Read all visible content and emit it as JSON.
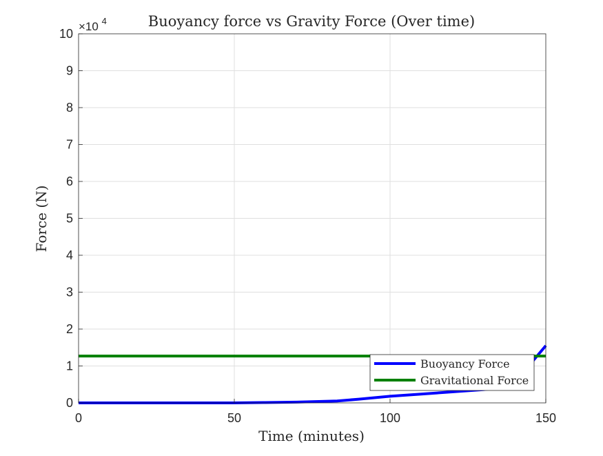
{
  "chart_data": {
    "type": "line",
    "title": "Buoyancy force vs Gravity Force (Over time)",
    "xlabel": "Time (minutes)",
    "ylabel": "Force (N)",
    "xlim": [
      0,
      150
    ],
    "ylim": [
      0,
      100000
    ],
    "x_ticks": [
      0,
      50,
      100,
      150
    ],
    "y_ticks": [
      0,
      10000,
      20000,
      30000,
      40000,
      50000,
      60000,
      70000,
      80000,
      90000,
      100000
    ],
    "x_tick_labels": [
      "0",
      "50",
      "100",
      "150"
    ],
    "y_tick_labels": [
      "0",
      "1",
      "2",
      "3",
      "4",
      "5",
      "6",
      "7",
      "8",
      "9",
      "10"
    ],
    "y_exponent_base": "×10",
    "y_exponent_power": "4",
    "grid": true,
    "legend_position": "bottom-right",
    "series": [
      {
        "name": "Buoyancy Force",
        "color": "#0000ff",
        "x": [
          0,
          10,
          20,
          30,
          40,
          50,
          60,
          70,
          83,
          90,
          100,
          110,
          120,
          130,
          140,
          145,
          150
        ],
        "y": [
          0,
          0,
          0,
          0,
          0,
          0,
          100,
          200,
          500,
          1000,
          1800,
          2400,
          3000,
          3600,
          4500,
          10500,
          15500
        ]
      },
      {
        "name": "Gravitational Force",
        "color": "#008000",
        "x": [
          0,
          150
        ],
        "y": [
          12700,
          12700
        ]
      }
    ]
  }
}
